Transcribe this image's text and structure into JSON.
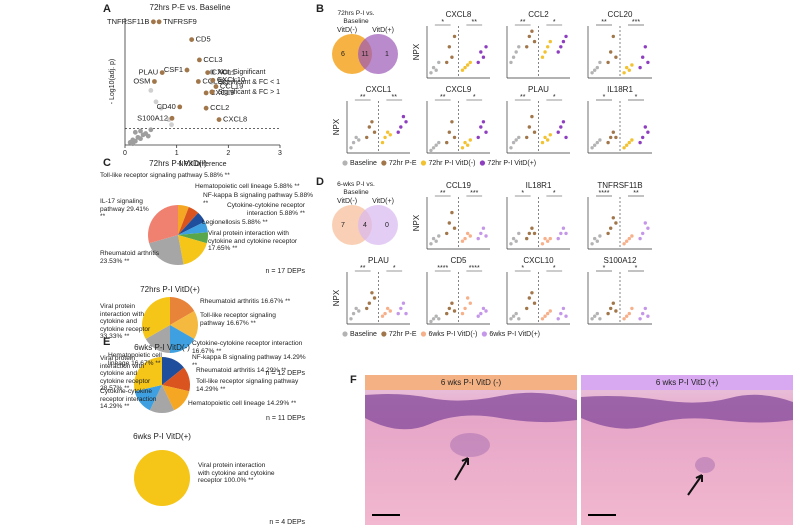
{
  "panel_labels": [
    "A",
    "B",
    "C",
    "D",
    "E",
    "F"
  ],
  "panel_a": {
    "type": "scatter",
    "title": "72hrs P-E vs. Baseline",
    "x_label": "NPX Difference",
    "y_label": "- Log10(adj. p)",
    "xlim": [
      0,
      3
    ],
    "ylim": [
      0,
      10
    ],
    "xticks": [
      0,
      1,
      2,
      3
    ],
    "threshold": 1.3,
    "series": [
      {
        "name": "Non-Significant",
        "color": "#9e9e9e",
        "x": [
          0.1,
          0.15,
          0.2,
          0.25,
          0.3,
          0.35,
          0.4,
          0.2,
          0.3,
          0.45,
          0.5,
          0.15
        ],
        "y": [
          0.2,
          0.4,
          0.3,
          0.6,
          0.5,
          0.8,
          0.9,
          1.0,
          1.1,
          0.7,
          1.2,
          0.1
        ]
      },
      {
        "name": "Significant & FC < 1",
        "color": "#cfcfcf",
        "x": [
          0.5,
          0.6,
          0.7,
          0.85,
          0.9
        ],
        "y": [
          4.3,
          3.4,
          2.9,
          2.0,
          1.6
        ]
      },
      {
        "name": "Significant & FC > 1",
        "color": "#a0764a",
        "labels": [
          "TNFRSF11B",
          "TNFRSF9",
          "CD5",
          "CCL3",
          "CSF1",
          "PLAU",
          "OSM",
          "CCL20",
          "CXCL1",
          "CXCL10",
          "CCL19",
          "CXCL9",
          "CD40",
          "CCL2",
          "S100A12",
          "CXCL8"
        ],
        "x": [
          0.55,
          0.66,
          1.29,
          1.44,
          1.2,
          0.72,
          0.57,
          1.42,
          1.6,
          1.7,
          1.76,
          1.57,
          1.06,
          1.57,
          0.91,
          1.82
        ],
        "y": [
          9.7,
          9.7,
          8.3,
          6.7,
          5.9,
          5.7,
          5.0,
          5.0,
          5.7,
          5.1,
          4.6,
          4.1,
          3.0,
          2.9,
          2.1,
          2.0
        ]
      }
    ]
  },
  "panel_b": {
    "venn": {
      "title": "72hrs P-I vs. Baseline",
      "left": "VitD(-)",
      "right": "VitD(+)",
      "only_left": "6",
      "both": "11",
      "only_right": "1"
    },
    "y_label": "NPX",
    "legend": [
      {
        "name": "Baseline",
        "color": "#b3b3b3"
      },
      {
        "name": "72hr P-E",
        "color": "#a0764a"
      },
      {
        "name": "72hr P-I VitD(-)",
        "color": "#f2c230"
      },
      {
        "name": "72hr P-I VitD(+)",
        "color": "#8e3fc0"
      }
    ],
    "plots": [
      {
        "title": "CXCL8",
        "ylim": [
          0,
          10
        ],
        "sig": [
          "*",
          "**"
        ],
        "values": [
          [
            1,
            2,
            1.5,
            3
          ],
          [
            3,
            6,
            4,
            8
          ],
          [
            1.5,
            2,
            2.5,
            3
          ],
          [
            3,
            5,
            4,
            6
          ]
        ]
      },
      {
        "title": "CCL2",
        "ylim": [
          0,
          10
        ],
        "sig": [
          "**",
          "*"
        ],
        "values": [
          [
            3,
            4,
            5,
            6
          ],
          [
            6,
            8,
            9,
            7
          ],
          [
            4,
            5,
            6,
            7
          ],
          [
            5,
            6,
            7,
            8
          ]
        ]
      },
      {
        "title": "CCL20",
        "ylim": [
          0,
          10
        ],
        "sig": [
          "**",
          "***"
        ],
        "values": [
          [
            1,
            1.5,
            2,
            3
          ],
          [
            3,
            5,
            8,
            4
          ],
          [
            1,
            2,
            1.5,
            2.5
          ],
          [
            2,
            4,
            6,
            3
          ]
        ]
      },
      {
        "title": "CXCL1",
        "ylim": [
          0,
          10
        ],
        "sig": [
          "**",
          "**"
        ],
        "values": [
          [
            1,
            2,
            3,
            2.5
          ],
          [
            3,
            5,
            6,
            4
          ],
          [
            2,
            3,
            4,
            3.5
          ],
          [
            4,
            5,
            7,
            6
          ]
        ]
      },
      {
        "title": "CXCL9",
        "ylim": [
          0,
          10
        ],
        "sig": [
          "**",
          "*"
        ],
        "values": [
          [
            0.5,
            1,
            1.5,
            2
          ],
          [
            2,
            4,
            6,
            3
          ],
          [
            1,
            2,
            1.5,
            2.5
          ],
          [
            3,
            5,
            6,
            4
          ]
        ]
      },
      {
        "title": "PLAU",
        "ylim": [
          0,
          10
        ],
        "sig": [
          "**",
          "*"
        ],
        "values": [
          [
            1,
            2,
            2.5,
            3
          ],
          [
            3,
            5,
            7,
            4
          ],
          [
            2,
            3,
            2.5,
            3.5
          ],
          [
            4,
            5,
            6,
            3
          ]
        ]
      },
      {
        "title": "IL18R1",
        "ylim": [
          0,
          10
        ],
        "sig": [
          "*",
          "*"
        ],
        "values": [
          [
            1,
            1.5,
            2,
            2.5
          ],
          [
            2,
            3,
            4,
            3
          ],
          [
            1,
            1.5,
            2,
            2.5
          ],
          [
            2,
            3,
            5,
            4
          ]
        ]
      }
    ]
  },
  "panel_c": {
    "pies": [
      {
        "title": "72hrs P-I VitD(-)",
        "n_label": "n = 17 DEPs",
        "slices": [
          {
            "name": "Toll-like receptor signaling pathway",
            "value": 5.88,
            "value_label": "5.88%",
            "sig": "**",
            "color": "#f5a623"
          },
          {
            "name": "Hematopoietic cell lineage",
            "value": 5.88,
            "value_label": "5.88%",
            "sig": "**",
            "color": "#d9541e"
          },
          {
            "name": "NF-kappa B signaling pathway",
            "value": 5.88,
            "value_label": "5.88%",
            "sig": "**",
            "color": "#1f4e9c"
          },
          {
            "name": "Cytokine-cytokine receptor interaction",
            "value": 5.88,
            "value_label": "5.88%",
            "sig": "**",
            "color": "#3ea0e0"
          },
          {
            "name": "Legionellosis",
            "value": 5.88,
            "value_label": "5.88%",
            "sig": "**",
            "color": "#5aa64a"
          },
          {
            "name": "Viral protein interaction with cytokine and cytokine receptor",
            "value": 17.65,
            "value_label": "17.65%",
            "sig": "**",
            "color": "#f5c518"
          },
          {
            "name": "Rheumatoid arthritis",
            "value": 23.53,
            "value_label": "23.53%",
            "sig": "**",
            "color": "#a6a6a6"
          },
          {
            "name": "IL-17 signaling pathway",
            "value": 29.41,
            "value_label": "29.41%",
            "sig": "**",
            "color": "#f08070"
          }
        ]
      },
      {
        "title": "72hrs P-I VitD(+)",
        "n_label": "n = 12 DEPs",
        "slices": [
          {
            "name": "Rheumatoid arthritis",
            "value": 16.67,
            "value_label": "16.67%",
            "sig": "**",
            "color": "#e8833a"
          },
          {
            "name": "Toll-like receptor signaling pathway",
            "value": 16.67,
            "value_label": "16.67%",
            "sig": "**",
            "color": "#f5b940"
          },
          {
            "name": "Cytokine-cytokine receptor interaction",
            "value": 16.67,
            "value_label": "16.67%",
            "sig": "**",
            "color": "#3ea0e0"
          },
          {
            "name": "Hematopoietic cell lineage",
            "value": 16.67,
            "value_label": "16.67%",
            "sig": "**",
            "color": "#a6a6a6"
          },
          {
            "name": "Viral protein interaction with cytokine and cytokine receptor",
            "value": 33.33,
            "value_label": "33.33%",
            "sig": "**",
            "color": "#f5c518"
          }
        ]
      }
    ]
  },
  "panel_d": {
    "venn": {
      "title": "6-wks P-I vs. Baseline",
      "left": "VitD(-)",
      "right": "VitD(+)",
      "only_left": "7",
      "both": "4",
      "only_right": "0"
    },
    "y_label": "NPX",
    "legend": [
      {
        "name": "Baseline",
        "color": "#b3b3b3"
      },
      {
        "name": "72hr P-E",
        "color": "#a0764a"
      },
      {
        "name": "6wks P-I VitD(-)",
        "color": "#f6b08a"
      },
      {
        "name": "6wks P-I VitD(+)",
        "color": "#c597e8"
      }
    ],
    "plots": [
      {
        "title": "CCL19",
        "ylim": [
          0,
          10
        ],
        "sig": [
          "**",
          "***"
        ],
        "values": [
          [
            1,
            2,
            1.5,
            2.5
          ],
          [
            3,
            5,
            7,
            4
          ],
          [
            1.5,
            2,
            3,
            2.5
          ],
          [
            2,
            3,
            4,
            2.5
          ]
        ]
      },
      {
        "title": "IL18R1",
        "ylim": [
          0,
          10
        ],
        "sig": [
          "*",
          "*"
        ],
        "values": [
          [
            1,
            2,
            1.5,
            3
          ],
          [
            2,
            3,
            4,
            3
          ],
          [
            1,
            2,
            1.5,
            2
          ],
          [
            2,
            3,
            4,
            3
          ]
        ]
      },
      {
        "title": "TNFRSF11B",
        "ylim": [
          0,
          10
        ],
        "sig": [
          "****",
          "**"
        ],
        "values": [
          [
            1,
            2,
            1.5,
            2.5
          ],
          [
            3,
            4,
            6,
            5
          ],
          [
            1,
            1.5,
            2,
            2.5
          ],
          [
            2,
            3,
            5,
            4
          ]
        ]
      },
      {
        "title": "PLAU",
        "ylim": [
          0,
          10
        ],
        "sig": [
          "**",
          "*"
        ],
        "values": [
          [
            1,
            2,
            3,
            2.5
          ],
          [
            3,
            4,
            6,
            5
          ],
          [
            1.5,
            2,
            3,
            2.5
          ],
          [
            2,
            3,
            4,
            2
          ]
        ]
      },
      {
        "title": "CD5",
        "ylim": [
          0,
          10
        ],
        "sig": [
          "****",
          "****"
        ],
        "values": [
          [
            0.5,
            1,
            1.5,
            1
          ],
          [
            2,
            3,
            4,
            2.5
          ],
          [
            2,
            3,
            5,
            4
          ],
          [
            1.5,
            2,
            3,
            2.5
          ]
        ]
      },
      {
        "title": "CXCL10",
        "ylim": [
          0,
          10
        ],
        "sig": [
          "*",
          "*"
        ],
        "values": [
          [
            1,
            1.5,
            2,
            1
          ],
          [
            3,
            5,
            6,
            4
          ],
          [
            1,
            1.5,
            2,
            2.5
          ],
          [
            1,
            2,
            3,
            1.5
          ]
        ]
      },
      {
        "title": "S100A12",
        "ylim": [
          0,
          10
        ],
        "sig": [
          "*",
          "*"
        ],
        "values": [
          [
            1,
            1.5,
            2,
            1
          ],
          [
            2,
            3,
            4,
            2.5
          ],
          [
            1,
            1.5,
            2,
            3
          ],
          [
            1,
            2,
            3,
            1.5
          ]
        ]
      }
    ]
  },
  "panel_e": {
    "pies": [
      {
        "title": "6wks P-I VitD(-)",
        "n_label": "n = 11 DEPs",
        "slices": [
          {
            "name": "NF-kappa B signaling pathway",
            "value": 14.29,
            "value_label": "14.29%",
            "sig": "**",
            "color": "#1f4e9c"
          },
          {
            "name": "Rheumatoid arthritis",
            "value": 14.29,
            "value_label": "14.29%",
            "sig": "**",
            "color": "#d9541e"
          },
          {
            "name": "Toll-like receptor signaling pathway",
            "value": 14.29,
            "value_label": "14.29%",
            "sig": "**",
            "color": "#f5a623"
          },
          {
            "name": "Hematopoietic cell lineage",
            "value": 14.29,
            "value_label": "14.29%",
            "sig": "**",
            "color": "#a6a6a6"
          },
          {
            "name": "Cytokine-cytokine receptor interaction",
            "value": 14.29,
            "value_label": "14.29%",
            "sig": "**",
            "color": "#3ea0e0"
          },
          {
            "name": "Viral protein interaction with cytokine and cytokine receptor",
            "value": 28.57,
            "value_label": "28.57%",
            "sig": "**",
            "color": "#f5c518"
          }
        ]
      },
      {
        "title": "6wks P-I VitD(+)",
        "n_label": "n = 4 DEPs",
        "slices": [
          {
            "name": "Viral protein interaction with cytokine and cytokine receptor",
            "value": 100.0,
            "value_label": "100.0%",
            "sig": "**",
            "color": "#f5c518"
          }
        ]
      }
    ]
  },
  "panel_f": {
    "left_title": "6 wks P-I VitD (-)",
    "right_title": "6 wks P-I VitD (+)"
  }
}
